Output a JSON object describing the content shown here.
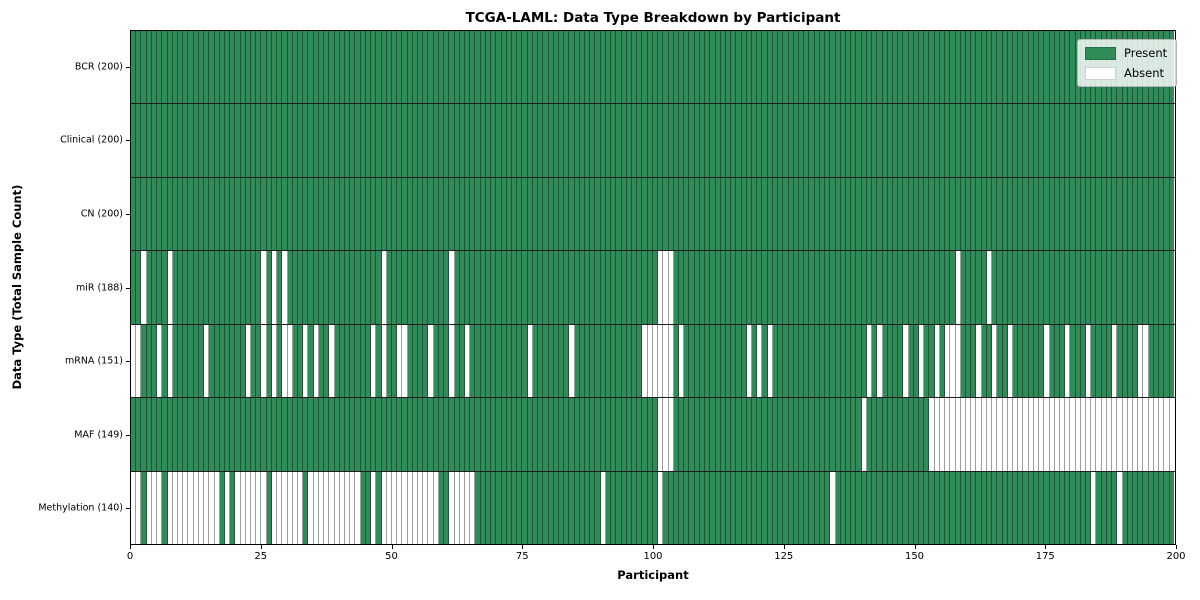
{
  "chart_data": {
    "type": "heatmap",
    "title": "TCGA-LAML: Data Type Breakdown by Participant",
    "xlabel": "Participant",
    "ylabel": "Data Type (Total Sample Count)",
    "n_participants": 200,
    "x_range": [
      0,
      200
    ],
    "x_ticks": [
      0,
      25,
      50,
      75,
      100,
      125,
      150,
      175,
      200
    ],
    "grid": "cell-dividers",
    "legend": {
      "position": "upper right",
      "items": [
        {
          "label": "Present",
          "color": "#2f8b57"
        },
        {
          "label": "Absent",
          "color": "#ffffff"
        }
      ]
    },
    "colors": {
      "present": "#2f8b57",
      "absent": "#ffffff",
      "cell_divider": "rgba(0,0,0,0.38)",
      "row_divider": "#1c1c1c",
      "frame": "#000000"
    },
    "rows": [
      {
        "name": "BCR",
        "label": "BCR (200)",
        "total_present": 200,
        "absent": []
      },
      {
        "name": "Clinical",
        "label": "Clinical (200)",
        "total_present": 200,
        "absent": []
      },
      {
        "name": "CN",
        "label": "CN (200)",
        "total_present": 200,
        "absent": []
      },
      {
        "name": "miR",
        "label": "miR (188)",
        "total_present": 188,
        "absent": [
          2,
          7,
          25,
          27,
          29,
          48,
          61,
          101,
          102,
          103,
          158,
          164
        ]
      },
      {
        "name": "mRNA",
        "label": "mRNA (151)",
        "total_present": 151,
        "absent": [
          0,
          1,
          5,
          7,
          14,
          22,
          25,
          27,
          29,
          30,
          33,
          35,
          38,
          46,
          48,
          51,
          52,
          57,
          61,
          64,
          76,
          84,
          98,
          99,
          100,
          101,
          102,
          103,
          105,
          118,
          120,
          122,
          141,
          143,
          148,
          151,
          154,
          156,
          157,
          158,
          162,
          165,
          168,
          175,
          179,
          183,
          188,
          193,
          194
        ]
      },
      {
        "name": "MAF",
        "label": "MAF (149)",
        "total_present": 149,
        "absent": [
          101,
          102,
          103,
          140,
          153,
          154,
          155,
          156,
          157,
          158,
          159,
          160,
          161,
          162,
          163,
          164,
          165,
          166,
          167,
          168,
          169,
          170,
          171,
          172,
          173,
          174,
          175,
          176,
          177,
          178,
          179,
          180,
          181,
          182,
          183,
          184,
          185,
          186,
          187,
          188,
          189,
          190,
          191,
          192,
          193,
          194,
          195,
          196,
          197,
          198,
          199
        ]
      },
      {
        "name": "Methylation",
        "label": "Methylation (140)",
        "total_present": 140,
        "absent": [
          0,
          1,
          3,
          4,
          5,
          7,
          8,
          9,
          10,
          11,
          12,
          13,
          14,
          15,
          16,
          18,
          20,
          21,
          22,
          23,
          24,
          25,
          27,
          28,
          29,
          30,
          31,
          32,
          34,
          35,
          36,
          37,
          38,
          39,
          40,
          41,
          42,
          43,
          46,
          48,
          49,
          50,
          51,
          52,
          53,
          54,
          55,
          56,
          57,
          58,
          61,
          62,
          63,
          64,
          65,
          90,
          101,
          134,
          184,
          189
        ]
      }
    ]
  }
}
